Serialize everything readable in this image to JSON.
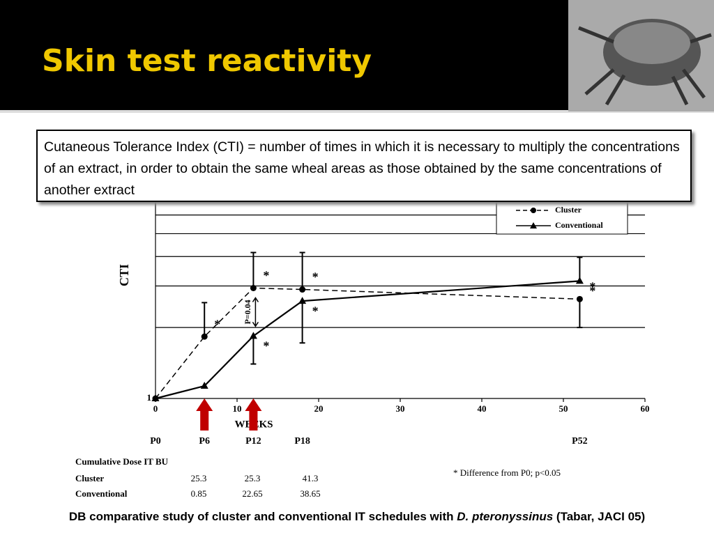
{
  "header": {
    "title": "Skin test reactivity"
  },
  "definition": "Cutaneous Tolerance Index (CTI) = number of times in which it is necessary to multiply the concentrations of an extract, in order to obtain the same wheal areas as those obtained by the same concentrations of another extract",
  "chart_data": {
    "type": "line",
    "x_label": "WEEKS",
    "y_label": "CTI",
    "x": [
      0,
      6,
      12,
      18,
      52
    ],
    "series": [
      {
        "name": "Cluster",
        "color": "#000000",
        "dash": true,
        "marker": "circle",
        "values": [
          1,
          1.83,
          2.94,
          2.9,
          2.64
        ],
        "error_ends": [
          null,
          2.55,
          4.16,
          4.16,
          2.0
        ],
        "flags": [
          null,
          "*",
          "*",
          "*",
          "*"
        ]
      },
      {
        "name": "Conventional",
        "color": "#000000",
        "dash": false,
        "marker": "triangle",
        "values": [
          1,
          1.13,
          1.84,
          2.59,
          3.15
        ],
        "error_ends": [
          null,
          null,
          1.4,
          1.72,
          3.97
        ],
        "flags": [
          null,
          null,
          "*",
          "*",
          "*"
        ]
      }
    ],
    "xlim": [
      0,
      60
    ],
    "xticks": [
      0,
      10,
      20,
      30,
      40,
      50,
      60
    ],
    "ylim": [
      1,
      7
    ],
    "yticks": [
      1
    ],
    "ygrid": [
      2,
      3,
      4,
      5,
      6,
      7
    ],
    "log_y": true,
    "p_annotation": "P=0.04",
    "phase_labels": [
      "P0",
      "P6",
      "P12",
      "P18",
      "P52"
    ],
    "phase_weeks": [
      0,
      6,
      12,
      18,
      52
    ],
    "arrows_at": [
      6,
      12
    ],
    "arrow_color": "#c00000",
    "footnote": "* Difference from P0; p<0.05"
  },
  "table": {
    "title": "Cumulative Dose IT BU",
    "rows": [
      [
        "Cluster",
        "25.3",
        "25.3",
        "41.3"
      ],
      [
        "Conventional",
        "0.85",
        "22.65",
        "38.65"
      ]
    ]
  },
  "caption": [
    "DB comparative study of cluster and conventional IT schedules with ",
    "D. pteronyssinus",
    " (Tabar, JACI 05)"
  ]
}
